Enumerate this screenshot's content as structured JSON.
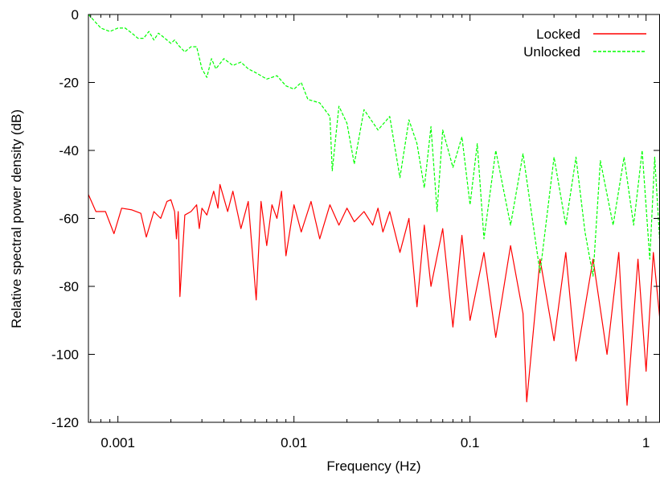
{
  "chart_data": {
    "type": "line",
    "title": "",
    "xlabel": "Frequency (Hz)",
    "ylabel": "Relative spectral power density (dB)",
    "xscale": "log",
    "xlim": [
      0.00068,
      1.2
    ],
    "ylim": [
      -120,
      0
    ],
    "x_ticks": [
      0.001,
      0.01,
      0.1,
      1
    ],
    "x_tick_labels": [
      "0.001",
      "0.01",
      "0.1",
      "1"
    ],
    "y_ticks": [
      0,
      -20,
      -40,
      -60,
      -80,
      -100,
      -120
    ],
    "y_tick_labels": [
      "0",
      "-20",
      "-40",
      "-60",
      "-80",
      "-100",
      "-120"
    ],
    "grid": false,
    "legend_position": "top-right",
    "series": [
      {
        "name": "Locked",
        "color": "#ff0000",
        "style": "solid",
        "points": [
          [
            0.00068,
            -53
          ],
          [
            0.00075,
            -58
          ],
          [
            0.00085,
            -58
          ],
          [
            0.00095,
            -64.5
          ],
          [
            0.00105,
            -57
          ],
          [
            0.0012,
            -57.5
          ],
          [
            0.00135,
            -58.5
          ],
          [
            0.00145,
            -65.5
          ],
          [
            0.0016,
            -58
          ],
          [
            0.00175,
            -60
          ],
          [
            0.0019,
            -55
          ],
          [
            0.002,
            -54.5
          ],
          [
            0.0021,
            -58
          ],
          [
            0.00215,
            -66
          ],
          [
            0.0022,
            -58
          ],
          [
            0.00225,
            -83
          ],
          [
            0.0024,
            -59
          ],
          [
            0.0026,
            -58
          ],
          [
            0.0028,
            -56
          ],
          [
            0.0029,
            -63
          ],
          [
            0.003,
            -57
          ],
          [
            0.0032,
            -59
          ],
          [
            0.0035,
            -52
          ],
          [
            0.0037,
            -57
          ],
          [
            0.0038,
            -50
          ],
          [
            0.0042,
            -58
          ],
          [
            0.0045,
            -52
          ],
          [
            0.005,
            -63
          ],
          [
            0.0055,
            -55
          ],
          [
            0.0061,
            -84
          ],
          [
            0.0065,
            -55
          ],
          [
            0.007,
            -68
          ],
          [
            0.0075,
            -56
          ],
          [
            0.008,
            -60
          ],
          [
            0.0085,
            -52
          ],
          [
            0.009,
            -71
          ],
          [
            0.01,
            -56
          ],
          [
            0.011,
            -64
          ],
          [
            0.0125,
            -55
          ],
          [
            0.014,
            -66
          ],
          [
            0.016,
            -56
          ],
          [
            0.018,
            -62
          ],
          [
            0.02,
            -57
          ],
          [
            0.022,
            -61
          ],
          [
            0.025,
            -58
          ],
          [
            0.028,
            -62
          ],
          [
            0.03,
            -57
          ],
          [
            0.032,
            -64
          ],
          [
            0.035,
            -58
          ],
          [
            0.04,
            -70
          ],
          [
            0.045,
            -60
          ],
          [
            0.05,
            -86
          ],
          [
            0.055,
            -62
          ],
          [
            0.06,
            -80
          ],
          [
            0.07,
            -63
          ],
          [
            0.08,
            -92
          ],
          [
            0.09,
            -65
          ],
          [
            0.1,
            -90
          ],
          [
            0.12,
            -70
          ],
          [
            0.14,
            -95
          ],
          [
            0.17,
            -68
          ],
          [
            0.2,
            -88
          ],
          [
            0.21,
            -114
          ],
          [
            0.25,
            -72
          ],
          [
            0.3,
            -96
          ],
          [
            0.35,
            -70
          ],
          [
            0.4,
            -102
          ],
          [
            0.5,
            -72
          ],
          [
            0.6,
            -100
          ],
          [
            0.7,
            -70
          ],
          [
            0.78,
            -115
          ],
          [
            0.9,
            -72
          ],
          [
            1.0,
            -105
          ],
          [
            1.1,
            -70
          ],
          [
            1.2,
            -90
          ]
        ]
      },
      {
        "name": "Unlocked",
        "color": "#00ff00",
        "style": "dashed",
        "points": [
          [
            0.00068,
            0
          ],
          [
            0.0008,
            -4
          ],
          [
            0.0009,
            -5
          ],
          [
            0.001,
            -4
          ],
          [
            0.0011,
            -4
          ],
          [
            0.0012,
            -5.5
          ],
          [
            0.0013,
            -7
          ],
          [
            0.0014,
            -7
          ],
          [
            0.0015,
            -5
          ],
          [
            0.0016,
            -7.5
          ],
          [
            0.0017,
            -5.5
          ],
          [
            0.0018,
            -6.5
          ],
          [
            0.002,
            -8.5
          ],
          [
            0.0021,
            -7.5
          ],
          [
            0.0022,
            -9
          ],
          [
            0.0024,
            -11
          ],
          [
            0.0026,
            -9.5
          ],
          [
            0.0028,
            -9.5
          ],
          [
            0.003,
            -16
          ],
          [
            0.0032,
            -18.5
          ],
          [
            0.0034,
            -13
          ],
          [
            0.0036,
            -16
          ],
          [
            0.004,
            -13
          ],
          [
            0.0045,
            -15
          ],
          [
            0.005,
            -14
          ],
          [
            0.0055,
            -16
          ],
          [
            0.006,
            -17
          ],
          [
            0.007,
            -19
          ],
          [
            0.008,
            -18
          ],
          [
            0.009,
            -21
          ],
          [
            0.01,
            -22
          ],
          [
            0.011,
            -20
          ],
          [
            0.012,
            -25
          ],
          [
            0.014,
            -26
          ],
          [
            0.016,
            -30
          ],
          [
            0.0165,
            -46
          ],
          [
            0.018,
            -27
          ],
          [
            0.02,
            -32
          ],
          [
            0.022,
            -44
          ],
          [
            0.025,
            -28
          ],
          [
            0.03,
            -34
          ],
          [
            0.035,
            -30
          ],
          [
            0.04,
            -48
          ],
          [
            0.045,
            -31
          ],
          [
            0.05,
            -38
          ],
          [
            0.055,
            -51
          ],
          [
            0.06,
            -33
          ],
          [
            0.065,
            -58
          ],
          [
            0.07,
            -34
          ],
          [
            0.08,
            -45
          ],
          [
            0.09,
            -36
          ],
          [
            0.1,
            -56
          ],
          [
            0.11,
            -38
          ],
          [
            0.12,
            -66
          ],
          [
            0.14,
            -40
          ],
          [
            0.17,
            -62
          ],
          [
            0.2,
            -41
          ],
          [
            0.25,
            -76
          ],
          [
            0.3,
            -42
          ],
          [
            0.35,
            -62
          ],
          [
            0.4,
            -42
          ],
          [
            0.45,
            -64
          ],
          [
            0.5,
            -77
          ],
          [
            0.55,
            -43
          ],
          [
            0.65,
            -62
          ],
          [
            0.75,
            -42
          ],
          [
            0.85,
            -62
          ],
          [
            0.95,
            -40
          ],
          [
            1.05,
            -72
          ],
          [
            1.12,
            -42
          ],
          [
            1.2,
            -68
          ]
        ]
      }
    ]
  }
}
